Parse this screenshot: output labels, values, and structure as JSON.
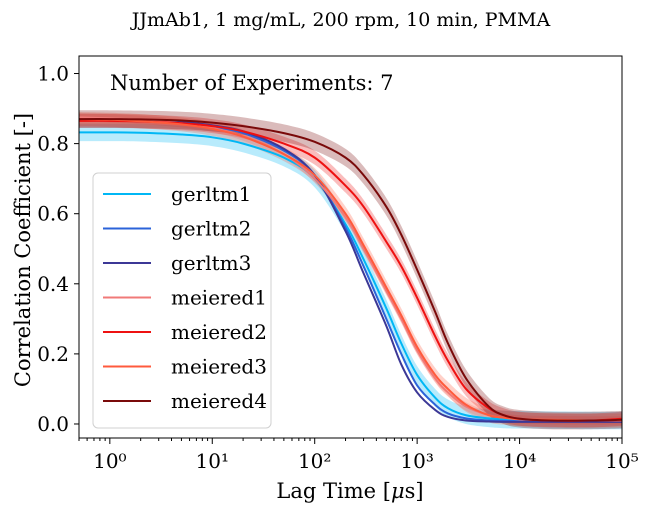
{
  "chart_data": {
    "type": "line",
    "title": "JJmAb1, 1 mg/mL, 200 rpm, 10 min, PMMA",
    "annotation": "Number of Experiments: 7",
    "xlabel": "Lag Time [μs]",
    "ylabel": "Correlation Coefficient [-]",
    "xscale": "log",
    "xlim": [
      0.5,
      100000
    ],
    "ylim": [
      -0.04,
      1.05
    ],
    "xticks": [
      1,
      10,
      100,
      1000,
      10000,
      100000
    ],
    "xtick_labels": [
      "10⁰",
      "10¹",
      "10²",
      "10³",
      "10⁴",
      "10⁵"
    ],
    "yticks": [
      0.0,
      0.2,
      0.4,
      0.6,
      0.8,
      1.0
    ],
    "ytick_labels": [
      "0.0",
      "0.2",
      "0.4",
      "0.6",
      "0.8",
      "1.0"
    ],
    "grid": false,
    "legend_position": "center-left",
    "x": [
      0.5,
      1,
      2,
      5,
      10,
      20,
      50,
      100,
      200,
      300,
      500,
      700,
      1000,
      1500,
      2000,
      3000,
      5000,
      7000,
      10000,
      20000,
      50000,
      100000
    ],
    "series": [
      {
        "name": "gerltm1",
        "color": "#00b7f5",
        "band": 0.025,
        "values": [
          0.832,
          0.832,
          0.831,
          0.826,
          0.818,
          0.8,
          0.76,
          0.7,
          0.57,
          0.47,
          0.33,
          0.23,
          0.14,
          0.075,
          0.045,
          0.025,
          0.016,
          0.013,
          0.012,
          0.011,
          0.01,
          0.01
        ]
      },
      {
        "name": "gerltm2",
        "color": "#2b63d9",
        "band": 0,
        "values": [
          0.868,
          0.868,
          0.866,
          0.858,
          0.848,
          0.83,
          0.78,
          0.71,
          0.56,
          0.45,
          0.3,
          0.2,
          0.11,
          0.055,
          0.03,
          0.016,
          0.01,
          0.009,
          0.008,
          0.008,
          0.008,
          0.008
        ]
      },
      {
        "name": "gerltm3",
        "color": "#3c3896",
        "band": 0,
        "values": [
          0.87,
          0.87,
          0.868,
          0.862,
          0.852,
          0.835,
          0.785,
          0.71,
          0.55,
          0.43,
          0.28,
          0.17,
          0.09,
          0.04,
          0.02,
          0.01,
          0.007,
          0.006,
          0.006,
          0.006,
          0.006,
          0.006
        ]
      },
      {
        "name": "meiered1",
        "color": "#f07a78",
        "band": 0.012,
        "values": [
          0.875,
          0.872,
          0.868,
          0.858,
          0.845,
          0.82,
          0.77,
          0.7,
          0.59,
          0.5,
          0.38,
          0.3,
          0.21,
          0.13,
          0.09,
          0.05,
          0.025,
          0.018,
          0.013,
          0.011,
          0.01,
          0.01
        ]
      },
      {
        "name": "meiered2",
        "color": "#ee1111",
        "band": 0.02,
        "values": [
          0.865,
          0.865,
          0.863,
          0.858,
          0.85,
          0.835,
          0.8,
          0.76,
          0.68,
          0.62,
          0.52,
          0.45,
          0.36,
          0.25,
          0.18,
          0.1,
          0.045,
          0.025,
          0.015,
          0.01,
          0.01,
          0.015
        ]
      },
      {
        "name": "meiered3",
        "color": "#ff5a3c",
        "band": 0.02,
        "values": [
          0.87,
          0.868,
          0.864,
          0.855,
          0.842,
          0.82,
          0.77,
          0.71,
          0.6,
          0.51,
          0.39,
          0.31,
          0.22,
          0.14,
          0.1,
          0.055,
          0.025,
          0.018,
          0.014,
          0.012,
          0.01,
          0.01
        ]
      },
      {
        "name": "meiered4",
        "color": "#7a0a0a",
        "band": 0.025,
        "values": [
          0.87,
          0.87,
          0.869,
          0.866,
          0.86,
          0.85,
          0.83,
          0.805,
          0.76,
          0.71,
          0.62,
          0.54,
          0.44,
          0.32,
          0.23,
          0.13,
          0.05,
          0.025,
          0.015,
          0.01,
          0.01,
          0.012
        ]
      }
    ]
  }
}
